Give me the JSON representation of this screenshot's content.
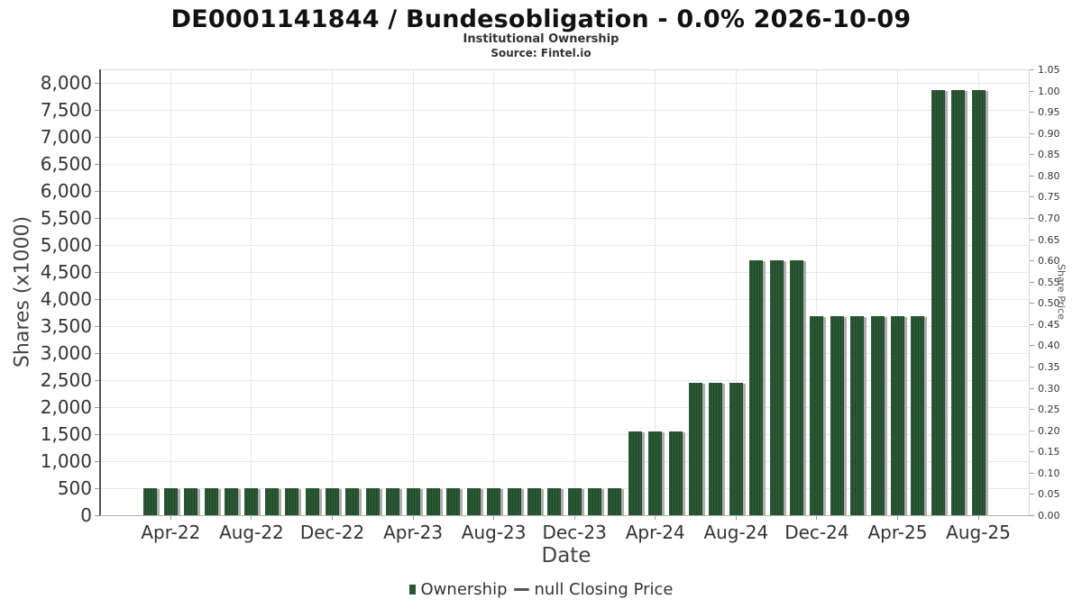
{
  "header": {
    "title": "DE0001141844 / Bundesobligation - 0.0% 2026-10-09",
    "subtitle": "Institutional Ownership",
    "source": "Source: Fintel.io"
  },
  "axes": {
    "y_left": {
      "label": "Shares (x1000)",
      "tick_step": 500,
      "tick_labels": [
        "0",
        "500",
        "1,000",
        "1,500",
        "2,000",
        "2,500",
        "3,000",
        "3,500",
        "4,000",
        "4,500",
        "5,000",
        "5,500",
        "6,000",
        "6,500",
        "7,000",
        "7,500",
        "8,000"
      ]
    },
    "y_right": {
      "label": "Share Price",
      "tick_step": 0.05,
      "tick_labels": [
        "0.00",
        "0.05",
        "0.10",
        "0.15",
        "0.20",
        "0.25",
        "0.30",
        "0.35",
        "0.40",
        "0.45",
        "0.50",
        "0.55",
        "0.60",
        "0.65",
        "0.70",
        "0.75",
        "0.80",
        "0.85",
        "0.90",
        "0.95",
        "1.00",
        "1.05"
      ]
    },
    "x": {
      "label": "Date",
      "tick_labels": [
        "Apr-22",
        "Aug-22",
        "Dec-22",
        "Apr-23",
        "Aug-23",
        "Dec-23",
        "Apr-24",
        "Aug-24",
        "Dec-24",
        "Apr-25",
        "Aug-25"
      ]
    }
  },
  "legend": {
    "items": [
      {
        "label": "Ownership",
        "marker": "square",
        "color": "#2b5634"
      },
      {
        "label": "null Closing Price",
        "marker": "line",
        "color": "#555555"
      }
    ]
  },
  "colors": {
    "bar": "#2c5a35",
    "bar_stripe": "#1f4728",
    "bar_shadow": "#aeaeae",
    "gridline": "#e7e7e7",
    "border": "#d9d9d9",
    "axis_line_left": "#555555",
    "axis_line_bottom": "#b3b3b3",
    "tick_mark": "#999999"
  },
  "chart_data": {
    "type": "bar",
    "title": "DE0001141844 / Bundesobligation - 0.0% 2026-10-09",
    "subtitle": "Institutional Ownership",
    "source": "Fintel.io",
    "xlabel": "Date",
    "ylabel_left": "Shares (x1000)",
    "ylabel_right": "Share Price",
    "ylim_left": [
      0,
      8250
    ],
    "ylim_right": [
      0,
      1.05
    ],
    "grid": true,
    "legend_position": "bottom",
    "series_name": "Ownership",
    "categories": [
      "Mar-22",
      "Apr-22",
      "May-22",
      "Jun-22",
      "Jul-22",
      "Aug-22",
      "Sep-22",
      "Oct-22",
      "Nov-22",
      "Dec-22",
      "Jan-23",
      "Feb-23",
      "Mar-23",
      "Apr-23",
      "May-23",
      "Jun-23",
      "Jul-23",
      "Aug-23",
      "Sep-23",
      "Oct-23",
      "Nov-23",
      "Dec-23",
      "Jan-24",
      "Feb-24",
      "Mar-24",
      "Apr-24",
      "May-24",
      "Jun-24",
      "Jul-24",
      "Aug-24",
      "Sep-24",
      "Oct-24",
      "Nov-24",
      "Dec-24",
      "Jan-25",
      "Feb-25",
      "Mar-25",
      "Apr-25",
      "May-25",
      "Jun-25",
      "Jul-25",
      "Aug-25"
    ],
    "values": [
      500,
      500,
      500,
      500,
      500,
      500,
      500,
      500,
      500,
      500,
      500,
      500,
      500,
      500,
      500,
      500,
      500,
      500,
      500,
      500,
      500,
      500,
      500,
      500,
      1550,
      1550,
      1550,
      2450,
      2450,
      2450,
      4720,
      4720,
      4720,
      3690,
      3690,
      3690,
      3690,
      3690,
      3690,
      7860,
      7860,
      7860
    ],
    "x_tick_category_indexes": [
      1,
      5,
      9,
      13,
      17,
      21,
      25,
      29,
      33,
      37,
      41
    ],
    "line_series": {
      "name": "null Closing Price",
      "values": []
    }
  }
}
